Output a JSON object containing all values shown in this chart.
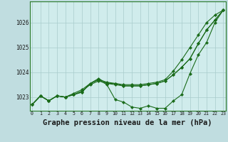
{
  "background_color": "#c0dde0",
  "plot_bg_color": "#d0ecec",
  "grid_color": "#a8cccc",
  "line_color": "#1a6b1a",
  "marker_color": "#1a6b1a",
  "xlabel": "Graphe pression niveau de la mer (hPa)",
  "xlabel_fontsize": 7.5,
  "xticks": [
    0,
    1,
    2,
    3,
    4,
    5,
    6,
    7,
    8,
    9,
    10,
    11,
    12,
    13,
    14,
    15,
    16,
    17,
    18,
    19,
    20,
    21,
    22,
    23
  ],
  "yticks": [
    1023,
    1024,
    1025,
    1026
  ],
  "ylim": [
    1022.45,
    1026.85
  ],
  "xlim": [
    -0.3,
    23.3
  ],
  "series": [
    [
      1022.7,
      1023.05,
      1022.85,
      1023.05,
      1023.0,
      1023.1,
      1023.2,
      1023.55,
      1023.7,
      1023.5,
      1022.9,
      1022.8,
      1022.6,
      1022.55,
      1022.65,
      1022.55,
      1022.55,
      1022.85,
      1023.1,
      1023.95,
      1024.7,
      1025.2,
      1026.0,
      1026.5
    ],
    [
      1022.7,
      1023.05,
      1022.85,
      1023.05,
      1023.0,
      1023.1,
      1023.25,
      1023.5,
      1023.65,
      1023.55,
      1023.5,
      1023.45,
      1023.45,
      1023.45,
      1023.5,
      1023.55,
      1023.65,
      1023.9,
      1024.2,
      1024.55,
      1025.15,
      1025.7,
      1026.1,
      1026.5
    ],
    [
      1022.7,
      1023.05,
      1022.85,
      1023.05,
      1023.0,
      1023.15,
      1023.3,
      1023.55,
      1023.7,
      1023.6,
      1023.55,
      1023.5,
      1023.5,
      1023.5,
      1023.55,
      1023.6,
      1023.7,
      1024.05,
      1024.5,
      1025.0,
      1025.5,
      1026.0,
      1026.3,
      1026.5
    ],
    [
      1022.7,
      1023.05,
      1022.85,
      1023.05,
      1023.0,
      1023.1,
      1023.2,
      1023.55,
      1023.75,
      1023.55,
      1023.55,
      1023.45,
      1023.45,
      1023.45,
      1023.5,
      1023.55,
      1023.65,
      1023.9,
      1024.2,
      1024.55,
      1025.15,
      1025.7,
      1026.1,
      1026.5
    ]
  ]
}
